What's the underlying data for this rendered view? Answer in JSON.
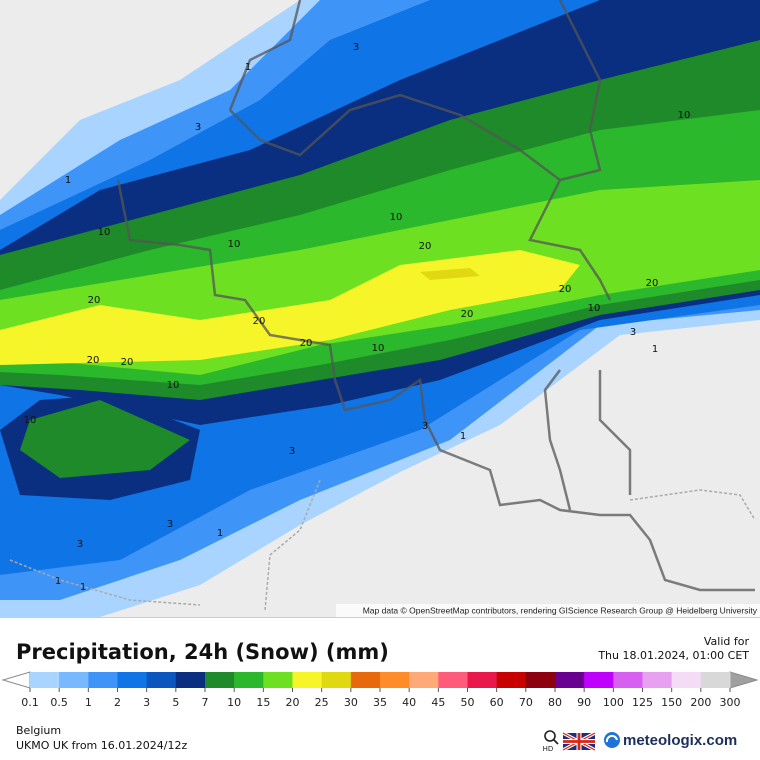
{
  "map": {
    "attribution": "Map data © OpenStreetMap contributors, rendering GIScience Research Group @ Heidelberg University",
    "contour_labels": [
      1,
      3,
      3,
      1,
      10,
      10,
      10,
      20,
      10,
      20,
      20,
      20,
      20,
      20,
      10,
      10,
      20,
      20,
      20,
      10,
      3,
      1,
      10,
      3,
      3,
      1,
      3,
      1,
      3,
      1,
      1
    ]
  },
  "legend": {
    "title": "Precipitation, 24h (Snow) (mm)",
    "valid_label": "Valid for",
    "valid_time": "Thu 18.01.2024, 01:00 CET",
    "ticks": [
      0.1,
      0.5,
      1,
      2,
      3,
      5,
      7,
      10,
      15,
      20,
      25,
      30,
      35,
      40,
      45,
      50,
      60,
      70,
      80,
      90,
      100,
      125,
      150,
      200,
      300
    ],
    "colors": [
      "#a8d4ff",
      "#78b8ff",
      "#3f94f7",
      "#0f74e6",
      "#0b55bf",
      "#0a2f80",
      "#1f8a2a",
      "#2cb82c",
      "#6ee022",
      "#f5f52a",
      "#e0d810",
      "#e8680c",
      "#ff8c28",
      "#ffa878",
      "#ff5c7c",
      "#e8184c",
      "#c80000",
      "#8c0010",
      "#6a0090",
      "#c000ff",
      "#d860f0",
      "#e8a0f0",
      "#f4dcf6",
      "#d8d8d8"
    ]
  },
  "footer": {
    "region": "Belgium",
    "model": "UKMO UK from  16.01.2024/12z",
    "hd": "HD",
    "brand": "meteologix.com"
  }
}
